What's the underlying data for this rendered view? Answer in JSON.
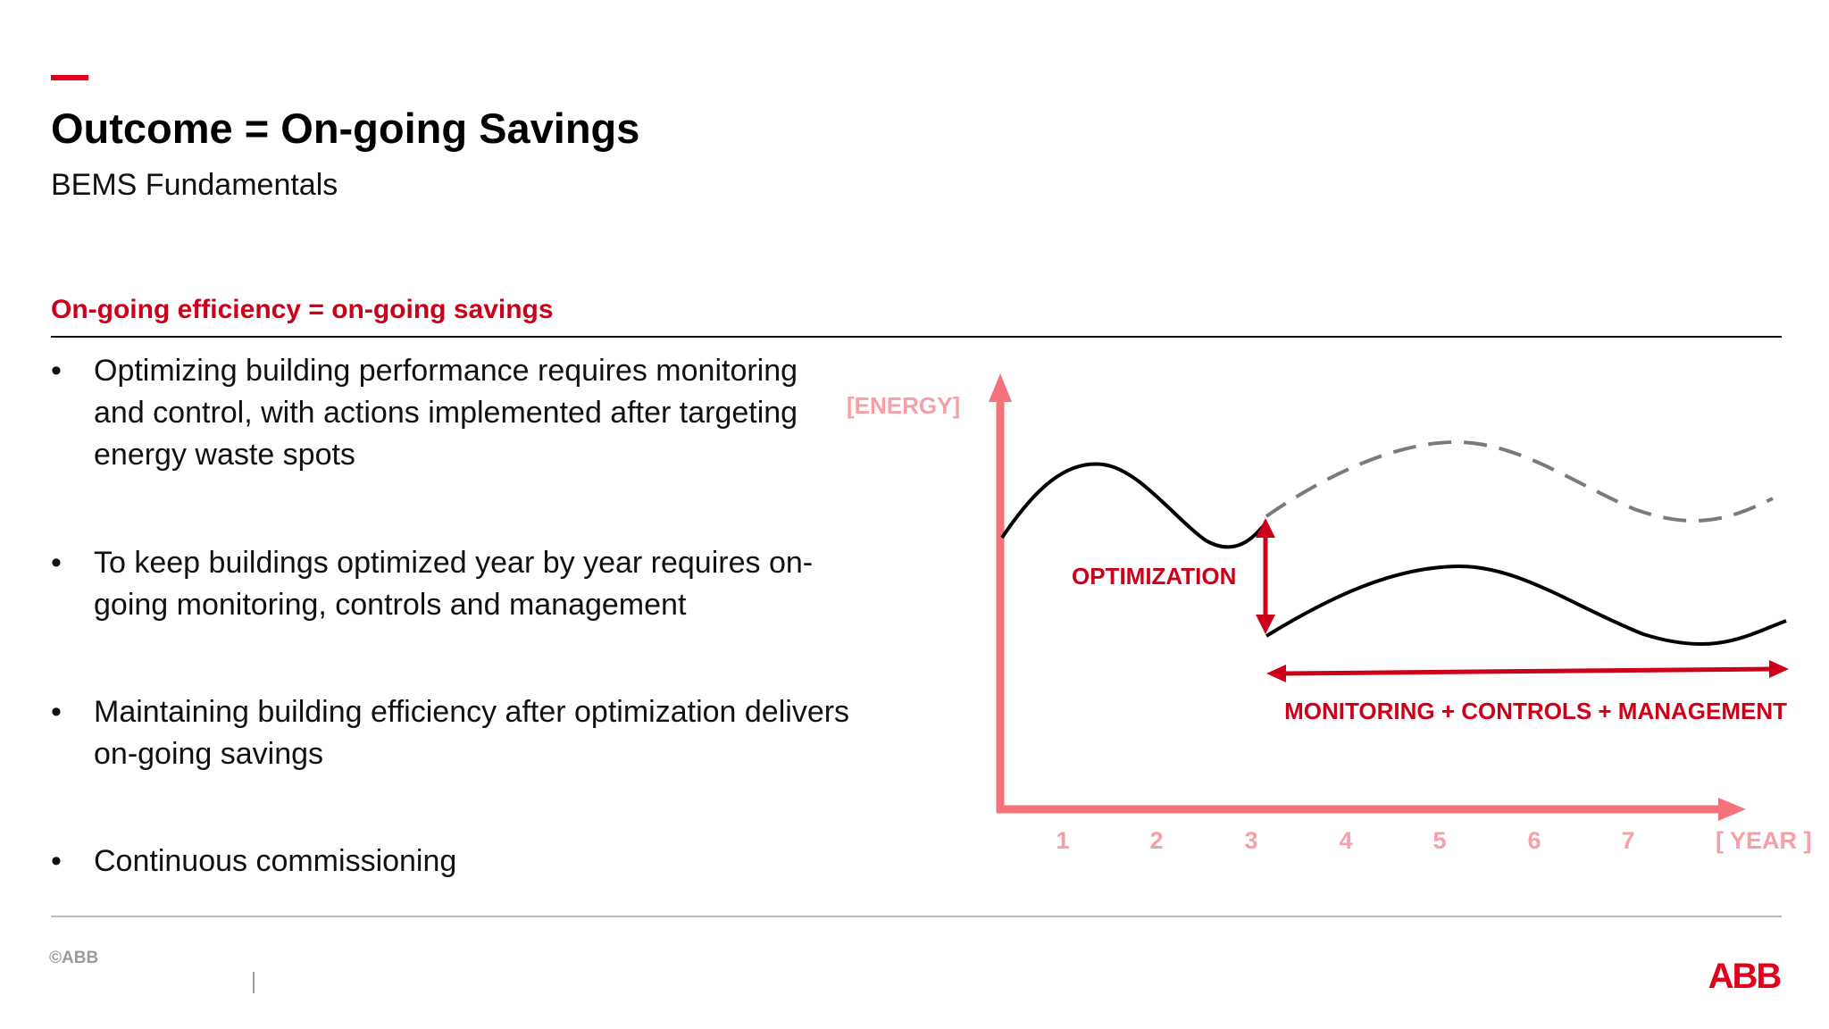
{
  "slide": {
    "title": "Outcome = On-going Savings",
    "subtitle": "BEMS Fundamentals",
    "section_heading": "On-going efficiency = on-going savings",
    "bullets": [
      "Optimizing building performance requires monitoring and control, with actions implemented after targeting energy waste spots",
      "To keep buildings optimized year by year requires on-going monitoring, controls and management",
      "Maintaining building efficiency after optimization delivers on-going savings",
      "Continuous commissioning"
    ],
    "bullet_glyph": "•"
  },
  "diagram": {
    "y_axis_label": "[ENERGY]",
    "x_axis_label": "[ YEAR ]",
    "x_ticks": [
      "1",
      "2",
      "3",
      "4",
      "5",
      "6",
      "7"
    ],
    "optimization_label": "OPTIMIZATION",
    "monitoring_label": "MONITORING + CONTROLS + MANAGEMENT",
    "colors": {
      "axis": "#f4727a",
      "axis_text": "#f4a0a6",
      "accent_red": "#cc0018",
      "curve": "#000000",
      "dashed": "#7a7a7a"
    }
  },
  "footer": {
    "copyright": "©ABB",
    "logo": "ABB",
    "logo_color": "#e2001a"
  }
}
